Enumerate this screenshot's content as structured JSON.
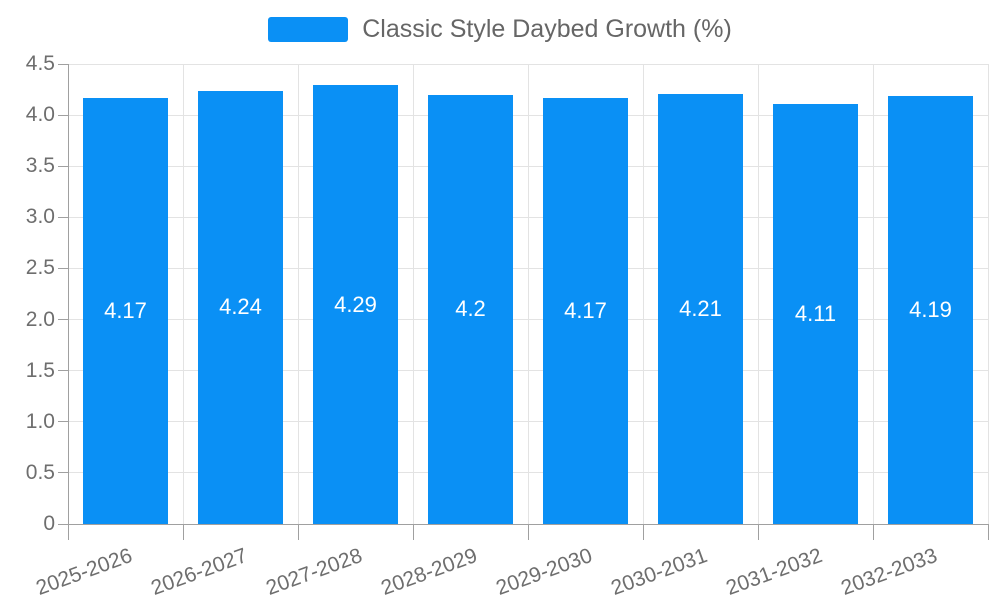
{
  "legend": {
    "label": "Classic Style Daybed Growth (%)"
  },
  "chart_data": {
    "type": "bar",
    "title": "Classic Style Daybed Growth (%)",
    "categories": [
      "2025-2026",
      "2026-2027",
      "2027-2028",
      "2028-2029",
      "2029-2030",
      "2030-2031",
      "2031-2032",
      "2032-2033"
    ],
    "values": [
      4.17,
      4.24,
      4.29,
      4.2,
      4.17,
      4.21,
      4.11,
      4.19
    ],
    "value_labels": [
      "4.17",
      "4.24",
      "4.29",
      "4.2",
      "4.17",
      "4.21",
      "4.11",
      "4.19"
    ],
    "xlabel": "",
    "ylabel": "",
    "ylim": [
      0,
      4.5
    ],
    "ytick_step": 0.5,
    "ytick_labels": [
      "0",
      "0.5",
      "1.0",
      "1.5",
      "2.0",
      "2.5",
      "3.0",
      "3.5",
      "4.0",
      "4.5"
    ],
    "grid": true,
    "legend_position": "top-center",
    "colors": {
      "bar": "#0a90f5",
      "data_label": "#ffffff",
      "axis_text": "#6e6e6e",
      "legend_text": "#666666",
      "grid_line": "#e3e3e3",
      "axis_line": "#a0a0a0",
      "background": "#ffffff"
    }
  }
}
